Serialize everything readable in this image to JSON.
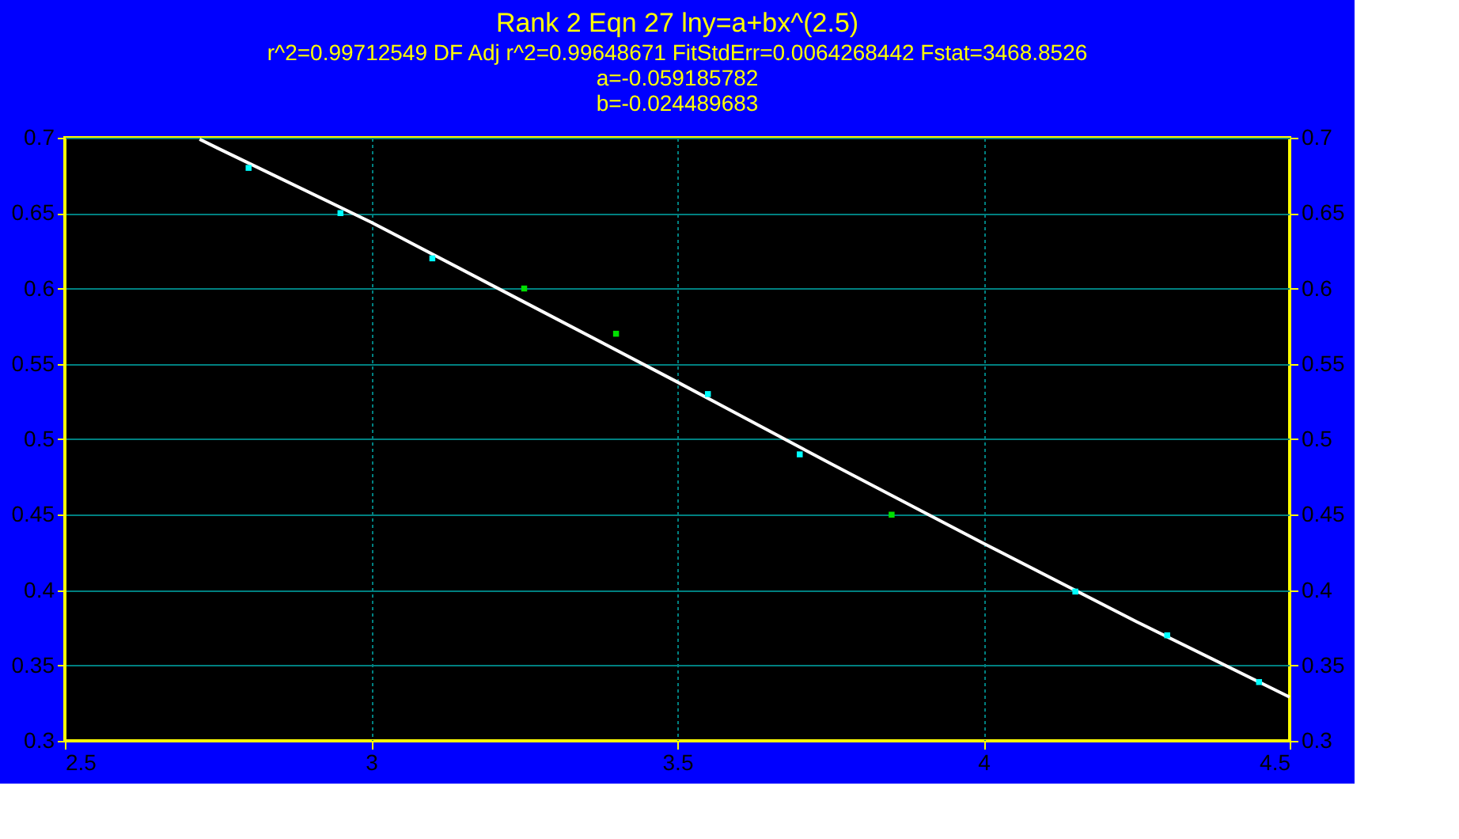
{
  "chart_data": {
    "type": "scatter",
    "title": "Rank 2  Eqn 27  lny=a+bx^(2.5)",
    "subtitle": "r^2=0.99712549  DF Adj r^2=0.99648671  FitStdErr=0.0064268442  Fstat=3468.8526\na=-0.059185782\nb=-0.024489683",
    "series": [
      {
        "color": "#00ffff",
        "x": [
          2.8,
          2.95,
          3.1,
          3.55,
          3.7,
          4.15,
          4.3,
          4.45
        ],
        "values": [
          0.68,
          0.65,
          0.62,
          0.53,
          0.49,
          0.399,
          0.37,
          0.339
        ]
      },
      {
        "color": "#00e000",
        "x": [
          3.25,
          3.4,
          3.85
        ],
        "values": [
          0.6,
          0.57,
          0.45
        ]
      },
      {
        "type": "line",
        "marker": "none",
        "color": "#ffffff",
        "x": [
          2.72,
          2.75,
          3.0,
          3.25,
          3.5,
          3.75,
          4.0,
          4.25,
          4.5
        ],
        "values": [
          0.699,
          0.693,
          0.644,
          0.591,
          0.538,
          0.484,
          0.431,
          0.379,
          0.329
        ]
      }
    ],
    "xlim": [
      2.5,
      4.5
    ],
    "xticks": [
      2.5,
      3,
      3.5,
      4,
      4.5
    ],
    "ylim": [
      0.3,
      0.7
    ],
    "yticks": [
      0.3,
      0.35,
      0.4,
      0.45,
      0.5,
      0.55,
      0.6,
      0.65,
      0.7
    ],
    "y2lim": [
      0.3,
      0.7
    ],
    "y2ticks": [
      0.3,
      0.35,
      0.4,
      0.45,
      0.5,
      0.55,
      0.6,
      0.65,
      0.7
    ],
    "grid": true,
    "marker": "square"
  }
}
